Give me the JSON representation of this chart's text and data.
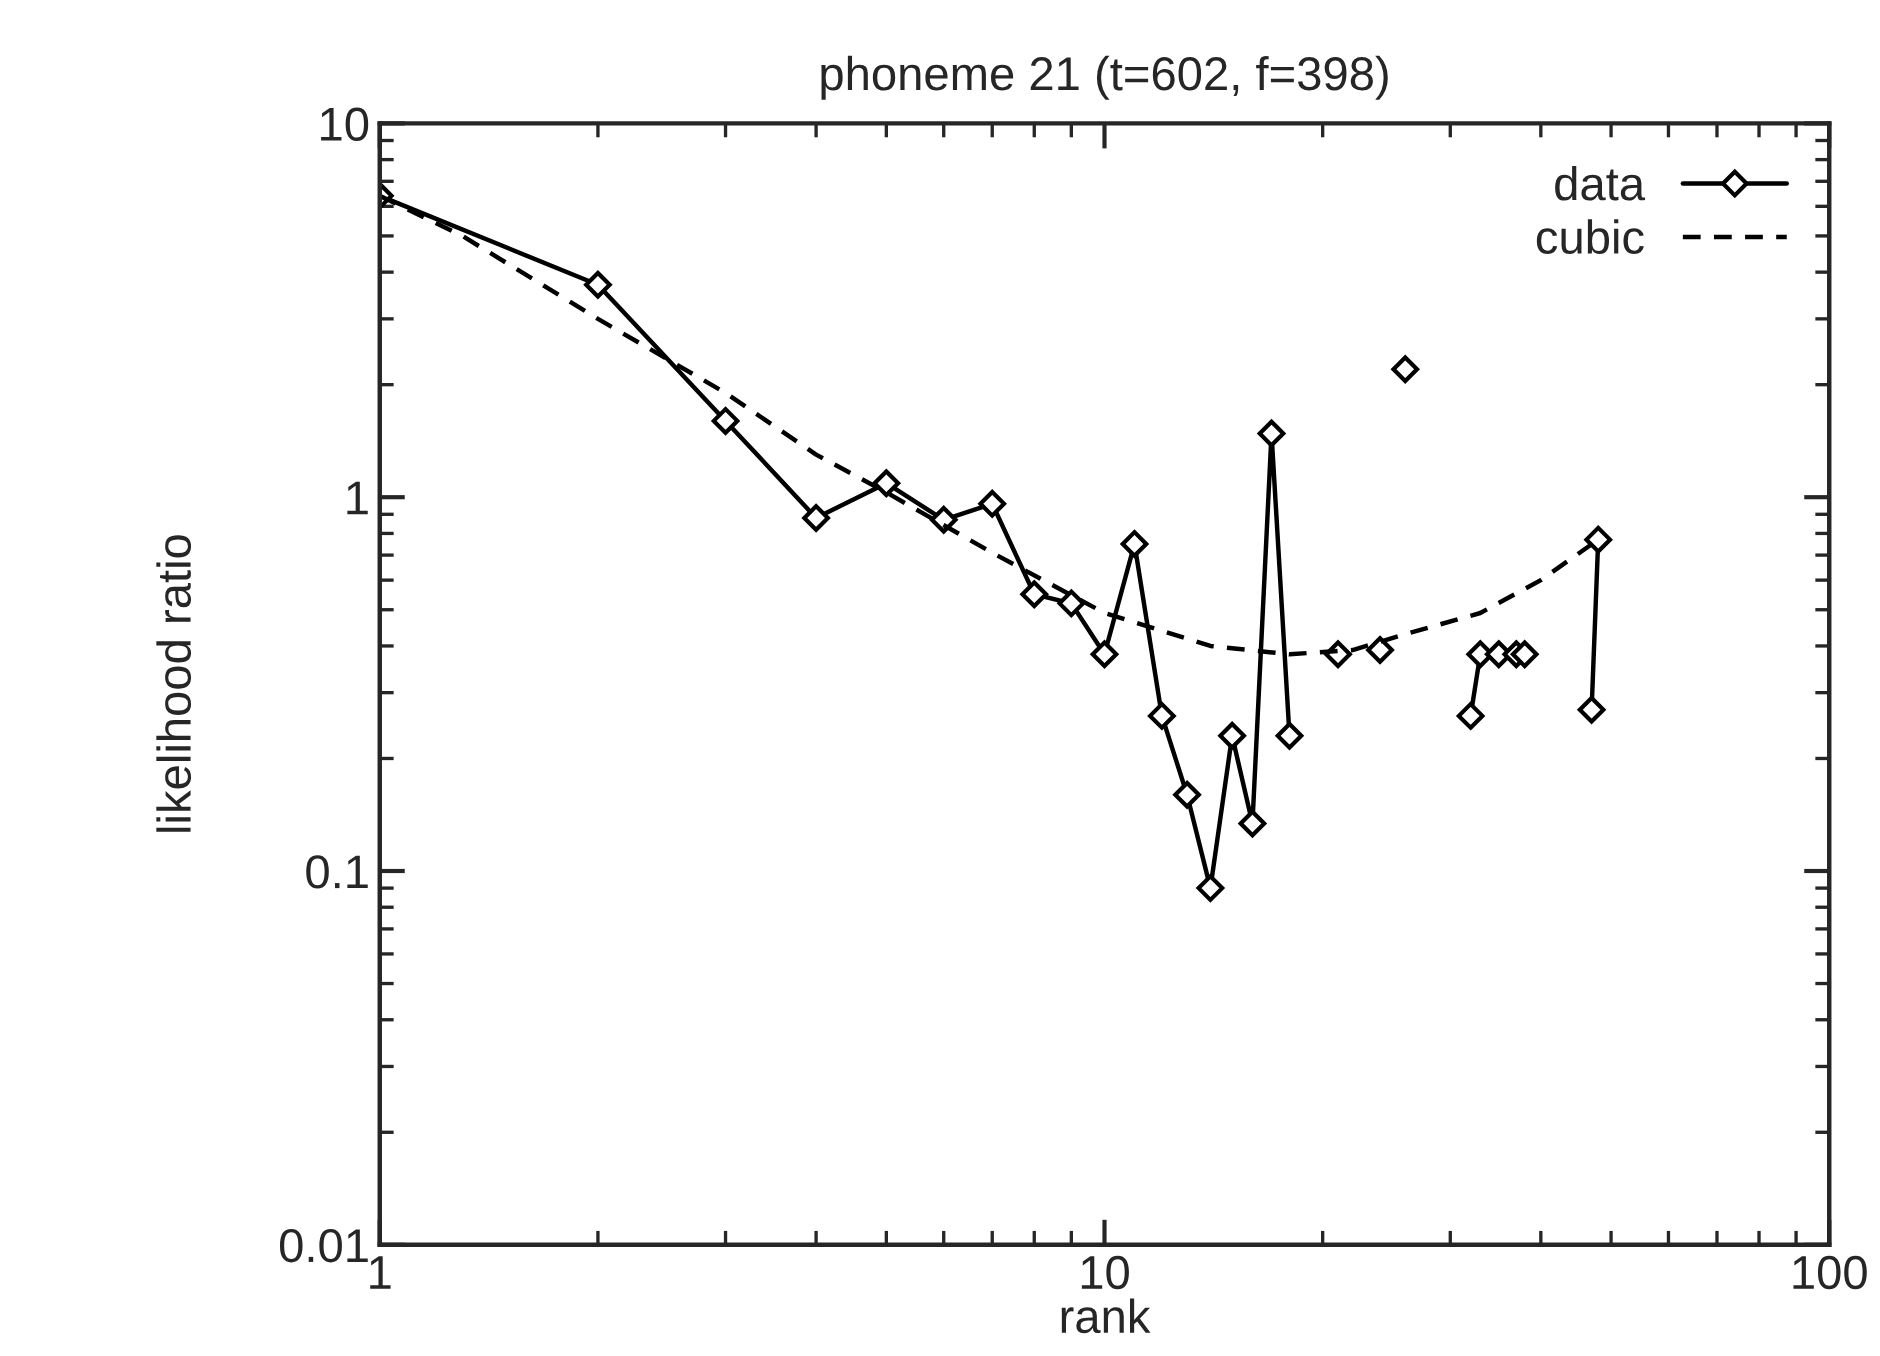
{
  "chart_data": {
    "type": "line",
    "title": "phoneme 21 (t=602, f=398)",
    "xlabel": "rank",
    "ylabel": "likelihood ratio",
    "log": "xy",
    "xlim": [
      1,
      100
    ],
    "ylim": [
      0.01,
      10
    ],
    "xticks": [
      1,
      10,
      100
    ],
    "yticks": [
      0.01,
      0.1,
      1,
      10
    ],
    "grid": false,
    "legend": "top right",
    "series": [
      {
        "name": "data",
        "color": "#000000",
        "marker": "diamond",
        "line_style": "solid",
        "x": [
          1,
          2,
          3,
          4,
          5,
          6,
          7,
          8,
          9,
          10,
          11,
          12,
          13,
          14,
          15,
          16,
          17,
          18,
          19,
          21,
          22,
          24,
          25,
          26,
          27,
          31,
          32,
          33,
          34,
          35,
          36,
          37,
          38,
          39,
          46,
          47,
          48
        ],
        "values": [
          6.4,
          3.7,
          1.6,
          0.88,
          1.09,
          0.87,
          0.96,
          0.55,
          0.52,
          0.38,
          0.75,
          0.26,
          0.16,
          0.09,
          0.23,
          0.134,
          1.48,
          0.23,
          null,
          0.38,
          null,
          0.39,
          null,
          2.2,
          null,
          null,
          0.26,
          0.38,
          null,
          0.38,
          null,
          0.38,
          0.38,
          null,
          null,
          0.27,
          0.77
        ]
      },
      {
        "name": "cubic",
        "color": "#000000",
        "marker": "none",
        "line_style": "dashed",
        "x": [
          1,
          1.3,
          2,
          3,
          4,
          5,
          7,
          10,
          14,
          18,
          22,
          26,
          33,
          40,
          48
        ],
        "values": [
          6.4,
          5.0,
          3.0,
          1.9,
          1.3,
          1.03,
          0.71,
          0.49,
          0.4,
          0.38,
          0.39,
          0.43,
          0.49,
          0.6,
          0.77
        ]
      }
    ]
  }
}
